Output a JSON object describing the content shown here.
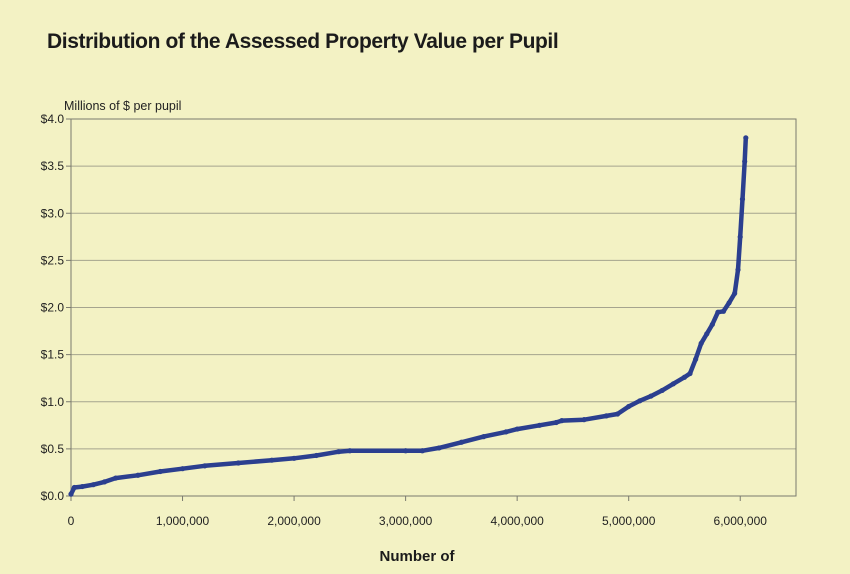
{
  "chart_data": {
    "type": "line",
    "title": "Distribution of the Assessed Property Value per Pupil",
    "ylabel": "Millions of $ per pupil",
    "xlabel": "Number of",
    "xlim": [
      0,
      6500000
    ],
    "ylim": [
      0,
      4.0
    ],
    "x_ticks": [
      0,
      1000000,
      2000000,
      3000000,
      4000000,
      5000000,
      6000000
    ],
    "x_tick_labels": [
      "0",
      "1,000,000",
      "2,000,000",
      "3,000,000",
      "4,000,000",
      "5,000,000",
      "6,000,000"
    ],
    "y_ticks": [
      0,
      0.5,
      1.0,
      1.5,
      2.0,
      2.5,
      3.0,
      3.5,
      4.0
    ],
    "y_tick_labels": [
      "$0.0",
      "$0.5",
      "$1.0",
      "$1.5",
      "$2.0",
      "$2.5",
      "$3.0",
      "$3.5",
      "$4.0"
    ],
    "grid": "horizontal",
    "legend": "none",
    "series": [
      {
        "color": "#2b3f8f",
        "x": [
          0,
          30000,
          100000,
          200000,
          300000,
          400000,
          600000,
          800000,
          1000000,
          1200000,
          1500000,
          1800000,
          2000000,
          2200000,
          2400000,
          2500000,
          3000000,
          3150000,
          3300000,
          3500000,
          3700000,
          3900000,
          4000000,
          4200000,
          4350000,
          4400000,
          4600000,
          4800000,
          4900000,
          5000000,
          5100000,
          5200000,
          5300000,
          5400000,
          5500000,
          5550000,
          5600000,
          5650000,
          5700000,
          5750000,
          5800000,
          5850000,
          5900000,
          5950000,
          5980000,
          6000000,
          6020000,
          6040000,
          6050000
        ],
        "y": [
          0.02,
          0.09,
          0.1,
          0.12,
          0.15,
          0.19,
          0.22,
          0.26,
          0.29,
          0.32,
          0.35,
          0.38,
          0.4,
          0.43,
          0.47,
          0.48,
          0.48,
          0.48,
          0.51,
          0.57,
          0.63,
          0.68,
          0.71,
          0.75,
          0.78,
          0.8,
          0.81,
          0.85,
          0.87,
          0.95,
          1.01,
          1.06,
          1.12,
          1.19,
          1.26,
          1.3,
          1.45,
          1.62,
          1.72,
          1.82,
          1.95,
          1.96,
          2.05,
          2.15,
          2.4,
          2.75,
          3.15,
          3.55,
          3.8
        ]
      }
    ]
  },
  "colors": {
    "background": "#f3f2c4",
    "plot_border": "#7a7a6e",
    "gridline": "#a5a48e",
    "series": "#2b3f8f"
  }
}
